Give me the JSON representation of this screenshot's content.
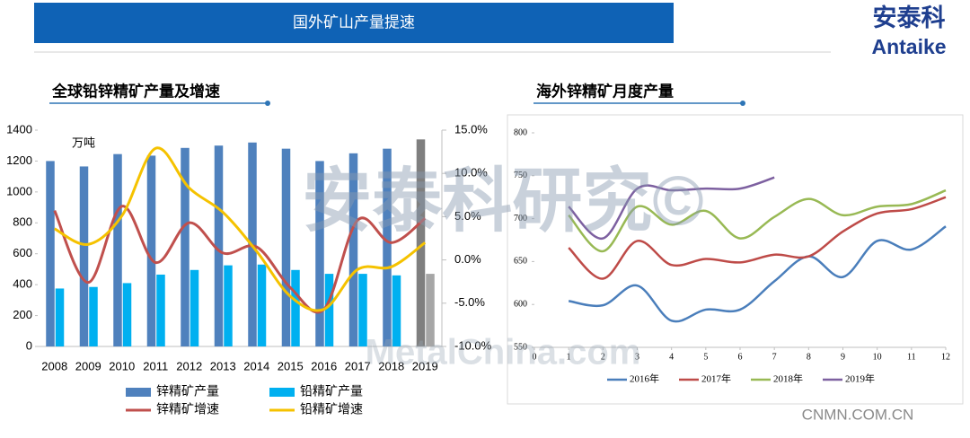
{
  "header": {
    "title": "国外矿山产量提速"
  },
  "logo": {
    "name": "安泰科",
    "latin": "Antaike"
  },
  "watermarks": [
    "安泰科研究©",
    "MetalChina.com",
    "CNMN.COM.CN"
  ],
  "chart_data": [
    {
      "type": "bar",
      "title": "全球铅锌精矿产量及增速",
      "annotation": "万吨",
      "categories": [
        "2008",
        "2009",
        "2010",
        "2011",
        "2012",
        "2013",
        "2014",
        "2015",
        "2016",
        "2017",
        "2018",
        "2019"
      ],
      "ylim": [
        0,
        1400
      ],
      "yticks": [
        0,
        200,
        400,
        600,
        800,
        1000,
        1200,
        1400
      ],
      "y2lim": [
        -10,
        15
      ],
      "y2ticks": [
        {
          "value": -10,
          "label": "-10.0%"
        },
        {
          "value": -5,
          "label": "-5.0%"
        },
        {
          "value": 0,
          "label": "0.0%"
        },
        {
          "value": 5,
          "label": "5.0%"
        },
        {
          "value": 10,
          "label": "10.0%"
        },
        {
          "value": 15,
          "label": "15.0%"
        }
      ],
      "grid": false,
      "series": [
        {
          "name": "锌精矿产量",
          "type": "bar",
          "color": "#4f81bd",
          "colors": [
            "#4f81bd",
            "#4f81bd",
            "#4f81bd",
            "#4f81bd",
            "#4f81bd",
            "#4f81bd",
            "#4f81bd",
            "#4f81bd",
            "#4f81bd",
            "#4f81bd",
            "#4f81bd",
            "#7f7f7f"
          ],
          "values": [
            1200,
            1165,
            1245,
            1235,
            1285,
            1300,
            1320,
            1280,
            1200,
            1250,
            1280,
            1340
          ]
        },
        {
          "name": "铅精矿产量",
          "type": "bar",
          "color": "#00b0f0",
          "colors": [
            "#00b0f0",
            "#00b0f0",
            "#00b0f0",
            "#00b0f0",
            "#00b0f0",
            "#00b0f0",
            "#00b0f0",
            "#00b0f0",
            "#00b0f0",
            "#00b0f0",
            "#00b0f0",
            "#a6a6a6"
          ],
          "values": [
            375,
            385,
            410,
            465,
            495,
            525,
            530,
            495,
            470,
            470,
            460,
            470
          ]
        },
        {
          "name": "锌精矿增速",
          "type": "line",
          "axis": "y2",
          "color": "#c0504d",
          "values": [
            5.7,
            -2.6,
            6.2,
            -0.3,
            4.3,
            0.8,
            1.5,
            -3.2,
            -5.7,
            4.6,
            2.0,
            4.8
          ]
        },
        {
          "name": "铅精矿增速",
          "type": "line",
          "axis": "y2",
          "color": "#f5c200",
          "values": [
            3.6,
            1.8,
            5.1,
            12.9,
            8.3,
            5.5,
            1.0,
            -4.2,
            -5.7,
            -1.1,
            -0.8,
            2.0
          ]
        }
      ]
    },
    {
      "type": "line",
      "title": "海外锌精矿月度产量",
      "x": [
        1,
        2,
        3,
        4,
        5,
        6,
        7,
        8,
        9,
        10,
        11,
        12
      ],
      "xlim": [
        0,
        12
      ],
      "xticks": [
        0,
        1,
        2,
        3,
        4,
        5,
        6,
        7,
        8,
        9,
        10,
        11,
        12
      ],
      "ylim": [
        550,
        800
      ],
      "yticks": [
        550,
        600,
        650,
        700,
        750,
        800
      ],
      "grid": false,
      "series": [
        {
          "name": "2016年",
          "color": "#4a7ebb",
          "values": [
            604,
            599,
            622,
            581,
            594,
            594,
            627,
            656,
            632,
            674,
            664,
            691
          ]
        },
        {
          "name": "2017年",
          "color": "#be4b48",
          "values": [
            666,
            630,
            674,
            646,
            653,
            649,
            658,
            656,
            685,
            706,
            711,
            725
          ]
        },
        {
          "name": "2018年",
          "color": "#98b954",
          "values": [
            704,
            662,
            714,
            693,
            709,
            677,
            702,
            723,
            704,
            714,
            717,
            733
          ]
        },
        {
          "name": "2019年",
          "color": "#7d60a0",
          "values": [
            714,
            677,
            735,
            733,
            735,
            735,
            748,
            null,
            null,
            null,
            null,
            null
          ]
        }
      ]
    }
  ]
}
